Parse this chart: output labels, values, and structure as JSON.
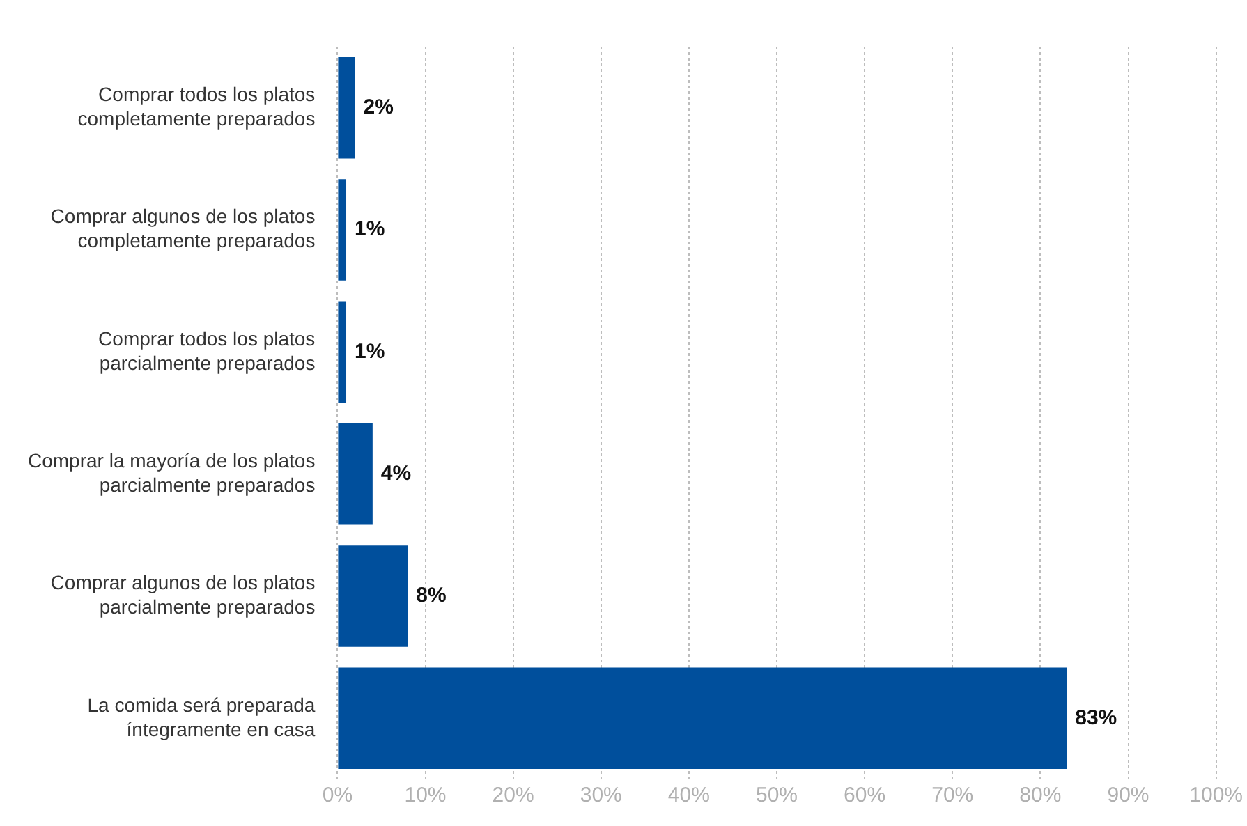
{
  "chart_data": {
    "type": "bar",
    "orientation": "horizontal",
    "categories": [
      "Comprar todos los platos completamente preparados",
      "Comprar algunos de los platos completamente preparados",
      "Comprar todos los platos parcialmente preparados",
      "Comprar la mayoría de los platos parcialmente preparados",
      "Comprar algunos de los platos parcialmente preparados",
      "La comida será preparada íntegramente en casa"
    ],
    "values": [
      2,
      1,
      1,
      4,
      8,
      83
    ],
    "value_labels": [
      "2%",
      "1%",
      "1%",
      "4%",
      "8%",
      "83%"
    ],
    "color": "#004f9c",
    "xlim": [
      0,
      100
    ],
    "xticks": [
      {
        "value": 0,
        "label": "0%"
      },
      {
        "value": 10,
        "label": "10%"
      },
      {
        "value": 20,
        "label": "20%"
      },
      {
        "value": 30,
        "label": "30%"
      },
      {
        "value": 40,
        "label": "40%"
      },
      {
        "value": 50,
        "label": "50%"
      },
      {
        "value": 60,
        "label": "60%"
      },
      {
        "value": 70,
        "label": "70%"
      },
      {
        "value": 80,
        "label": "80%"
      },
      {
        "value": 90,
        "label": "90%"
      },
      {
        "value": 100,
        "label": "100%"
      }
    ],
    "grid": "x",
    "legend": false
  }
}
